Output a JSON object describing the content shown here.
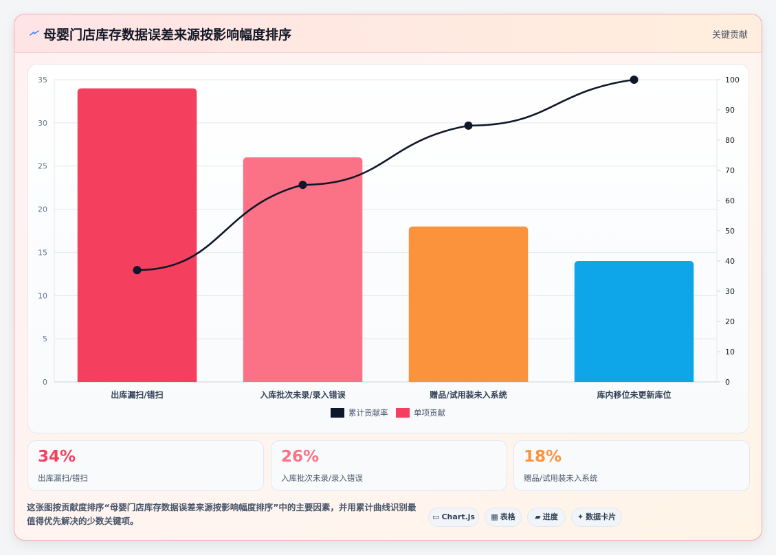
{
  "header": {
    "title": "母婴门店库存数据误差来源按影响幅度排序",
    "badge": "关键贡献"
  },
  "colors": {
    "bars": [
      "#f43f5e",
      "#fb7185",
      "#fb923c",
      "#0ea5e9"
    ],
    "line": "#0f172a"
  },
  "chart_data": {
    "type": "bar",
    "categories": [
      "出库漏扫/错扫",
      "入库批次未录/录入错误",
      "赠品/试用装未入系统",
      "库内移位未更新库位"
    ],
    "series": [
      {
        "name": "单项贡献",
        "type": "bar",
        "axis": "left",
        "values": [
          34,
          26,
          18,
          14
        ]
      },
      {
        "name": "累计贡献率",
        "type": "line",
        "axis": "right",
        "values": [
          37,
          65.2,
          84.8,
          100
        ]
      }
    ],
    "ylim_left": [
      0,
      35
    ],
    "yticks_left": [
      0,
      5,
      10,
      15,
      20,
      25,
      30,
      35
    ],
    "ylim_right": [
      0,
      100
    ],
    "yticks_right": [
      0,
      10,
      20,
      30,
      40,
      50,
      60,
      70,
      80,
      90,
      100
    ],
    "legend_position": "bottom",
    "grid": true
  },
  "stats": [
    {
      "pct": "34%",
      "label": "出库漏扫/错扫",
      "color": "#f43f5e"
    },
    {
      "pct": "26%",
      "label": "入库批次未录/录入错误",
      "color": "#fb7185"
    },
    {
      "pct": "18%",
      "label": "赠品/试用装未入系统",
      "color": "#fb923c"
    }
  ],
  "description": "这张图按贡献度排序“母婴门店库存数据误差来源按影响幅度排序”中的主要因素，并用累计曲线识别最值得优先解决的少数关键项。",
  "tags": [
    {
      "icon": "▭",
      "label": "Chart.js"
    },
    {
      "icon": "▦",
      "label": "表格"
    },
    {
      "icon": "▰",
      "label": "进度"
    },
    {
      "icon": "✦",
      "label": "数据卡片"
    }
  ]
}
